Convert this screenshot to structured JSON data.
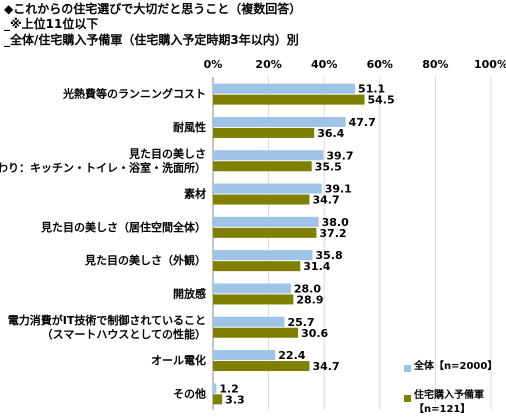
{
  "header": {
    "line1": "◆これからの住宅選びで大切だと思うこと（複数回答）",
    "line2": "_※上位11位以下",
    "line3": "_全体/住宅購入予備軍（住宅購入予定時期3年以内）別"
  },
  "chart_data": {
    "type": "bar",
    "orientation": "horizontal",
    "xlim": [
      0,
      100
    ],
    "x_ticks": [
      "0%",
      "20%",
      "40%",
      "60%",
      "80%",
      "100%"
    ],
    "grid": true,
    "categories": [
      [
        "光熱費等のランニングコスト"
      ],
      [
        "耐風性"
      ],
      [
        "見た目の美しさ",
        "（水まわり：キッチン・トイレ・浴室・洗面所）"
      ],
      [
        "素材"
      ],
      [
        "見た目の美しさ（居住空間全体）"
      ],
      [
        "見た目の美しさ（外観）"
      ],
      [
        "開放感"
      ],
      [
        "電力消費がIT技術で制御されていること",
        "（スマートハウスとしての性能）"
      ],
      [
        "オール電化"
      ],
      [
        "その他"
      ]
    ],
    "series": [
      {
        "name": "全体【n=2000】",
        "color": "#9DC3E6",
        "values": [
          51.1,
          47.7,
          39.7,
          39.1,
          38.0,
          35.8,
          28.0,
          25.7,
          22.4,
          1.2
        ]
      },
      {
        "name": "住宅購入予備軍【n=121】",
        "color": "#7F7F00",
        "values": [
          54.5,
          36.4,
          35.5,
          34.7,
          37.2,
          31.4,
          28.9,
          30.6,
          34.7,
          3.3
        ]
      }
    ],
    "legend": {
      "placement": "bottom-right",
      "items": [
        {
          "lines": [
            "全体【n=2000】"
          ],
          "color": "#9DC3E6"
        },
        {
          "lines": [
            "住宅購入予備軍",
            "【n=121】"
          ],
          "color": "#7F7F00"
        }
      ]
    }
  }
}
